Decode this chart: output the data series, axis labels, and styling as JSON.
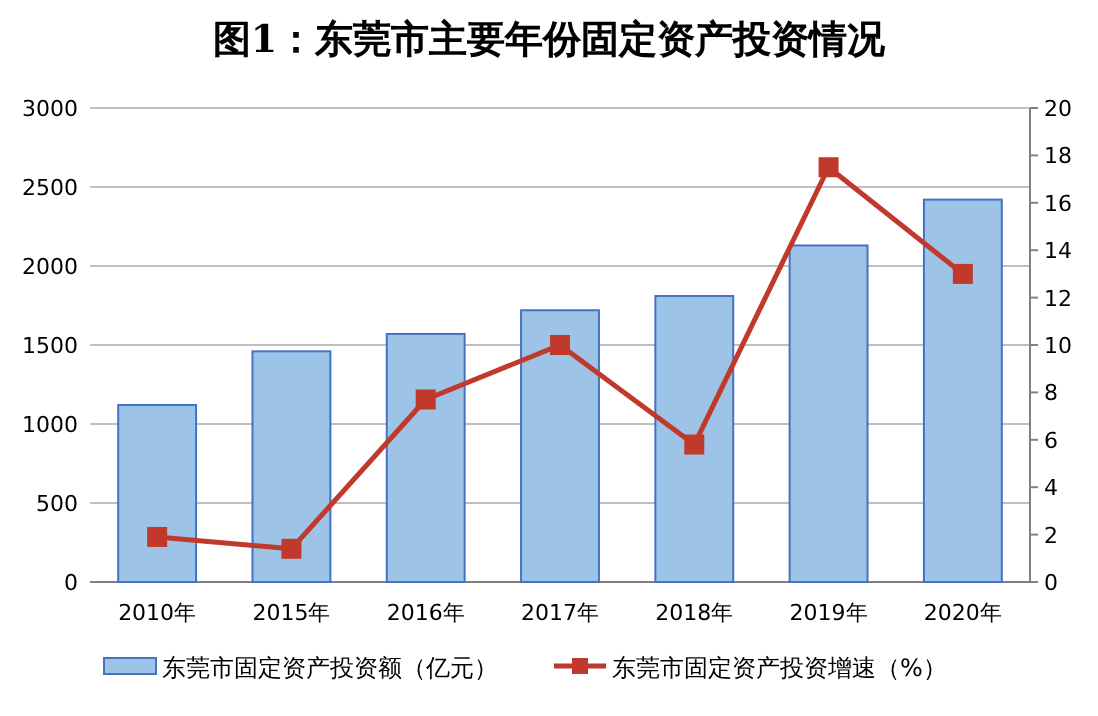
{
  "chart_data": {
    "type": "bar",
    "title": "图1：东莞市主要年份固定资产投资情况",
    "categories": [
      "2010年",
      "2015年",
      "2016年",
      "2017年",
      "2018年",
      "2019年",
      "2020年"
    ],
    "series": [
      {
        "name": "东莞市固定资产投资额（亿元）",
        "color": "#9dc3e6",
        "values": [
          1120,
          1460,
          1570,
          1720,
          1810,
          2130,
          2420
        ]
      },
      {
        "name": "东莞市固定资产投资增速（%）",
        "type": "line",
        "axis": "y2",
        "color": "#c0392b",
        "marker": "square",
        "values": [
          1.9,
          1.4,
          7.7,
          10.0,
          5.8,
          17.5,
          13.0
        ]
      }
    ],
    "ylim": [
      0,
      3000
    ],
    "yticks": [
      0,
      500,
      1000,
      1500,
      2000,
      2500,
      3000
    ],
    "y2lim": [
      0,
      20
    ],
    "y2ticks": [
      0,
      2,
      4,
      6,
      8,
      10,
      12,
      14,
      16,
      18,
      20
    ],
    "grid": "y",
    "legend": "bottom"
  }
}
